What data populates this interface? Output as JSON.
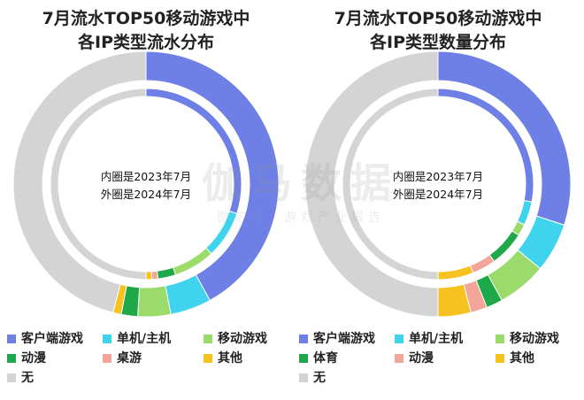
{
  "watermark": {
    "main": "伽马数据",
    "sub": "微信号：游戏产业报告"
  },
  "chart_data": [
    {
      "type": "pie",
      "variant": "nested-donut",
      "title_lines": [
        "7月流水TOP50移动游戏中",
        "各IP类型流水分布"
      ],
      "center_note": [
        "内圈是2023年7月",
        "外圈是2024年7月"
      ],
      "categories": [
        "客户端游戏",
        "单机/主机",
        "移动游戏",
        "动漫",
        "桌游",
        "其他",
        "无"
      ],
      "colors": [
        "#6e7fe6",
        "#3fd3ee",
        "#9bdb6b",
        "#1fa84a",
        "#f4a59a",
        "#f7c11f",
        "#d4d4d4"
      ],
      "series": [
        {
          "ring": "outer",
          "period": "2024年7月",
          "values": [
            42,
            5,
            4,
            2,
            0,
            1,
            46
          ]
        },
        {
          "ring": "inner",
          "period": "2023年7月",
          "values": [
            30,
            8,
            7,
            3,
            1,
            1,
            50
          ]
        }
      ]
    },
    {
      "type": "pie",
      "variant": "nested-donut",
      "title_lines": [
        "7月流水TOP50移动游戏中",
        "各IP类型数量分布"
      ],
      "center_note": [
        "内圈是2023年7月",
        "外圈是2024年7月"
      ],
      "categories": [
        "客户端游戏",
        "单机/主机",
        "移动游戏",
        "体育",
        "动漫",
        "其他",
        "无"
      ],
      "colors": [
        "#6e7fe6",
        "#3fd3ee",
        "#9bdb6b",
        "#1fa84a",
        "#f4a59a",
        "#f7c11f",
        "#d4d4d4"
      ],
      "series": [
        {
          "ring": "outer",
          "period": "2024年7月",
          "values": [
            30,
            6,
            6,
            2,
            2,
            4,
            50
          ]
        },
        {
          "ring": "inner",
          "period": "2023年7月",
          "values": [
            28,
            4,
            2,
            6,
            4,
            6,
            50
          ]
        }
      ]
    }
  ]
}
